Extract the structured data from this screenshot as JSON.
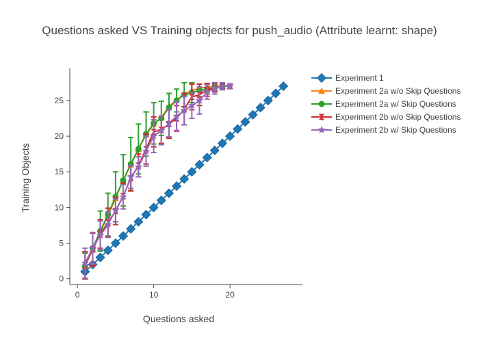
{
  "chart_data": {
    "type": "line",
    "title": "Questions asked VS Training objects for push_audio (Attribute learnt: shape)",
    "xlabel": "Questions asked",
    "ylabel": "Training Objects",
    "xlim": [
      -1,
      29.5
    ],
    "ylim": [
      -0.8,
      29.5
    ],
    "xticks": [
      0,
      10,
      20
    ],
    "yticks": [
      0,
      5,
      10,
      15,
      20,
      25
    ],
    "grid": false,
    "legend_position": "right",
    "series": [
      {
        "name": "Experiment 1",
        "color": "#1f77b4",
        "marker": "diamond",
        "x": [
          1,
          2,
          3,
          4,
          5,
          6,
          7,
          8,
          9,
          10,
          11,
          12,
          13,
          14,
          15,
          16,
          17,
          18,
          19,
          20,
          21,
          22,
          23,
          24,
          25,
          26,
          27
        ],
        "y": [
          1,
          2,
          3,
          4,
          5,
          6,
          7,
          8,
          9,
          10,
          11,
          12,
          13,
          14,
          15,
          16,
          17,
          18,
          19,
          20,
          21,
          22,
          23,
          24,
          25,
          26,
          27
        ]
      },
      {
        "name": "Experiment 2a w/o Skip Questions",
        "color": "#ff7f0e",
        "marker": "triangle-up",
        "x": [
          1,
          2,
          3,
          4,
          5,
          6,
          7,
          8,
          9,
          10,
          11,
          12,
          13,
          14,
          15,
          16,
          17,
          18,
          19,
          20
        ],
        "y": [
          1.8,
          4.2,
          6.6,
          8.8,
          11.3,
          13.8,
          16.0,
          18.2,
          20.2,
          21.7,
          22.6,
          24.2,
          25.1,
          25.9,
          26.4,
          26.7,
          26.9,
          27.0,
          27.0,
          27.0
        ]
      },
      {
        "name": "Experiment 2a w/ Skip Questions",
        "color": "#2ca02c",
        "marker": "circle",
        "x": [
          1,
          2,
          3,
          4,
          5,
          6,
          7,
          8,
          9,
          10,
          11,
          12,
          13,
          14,
          15,
          16,
          17,
          18,
          19
        ],
        "y": [
          1.8,
          4.3,
          6.7,
          9.0,
          11.5,
          13.8,
          16.1,
          18.2,
          20.3,
          21.8,
          22.5,
          24.0,
          25.0,
          25.8,
          26.1,
          26.4,
          26.6,
          26.8,
          27.0
        ],
        "err": [
          1.8,
          2.2,
          2.8,
          3.0,
          3.5,
          3.6,
          3.7,
          3.5,
          3.1,
          2.9,
          2.4,
          2.0,
          1.6,
          1.7,
          1.4,
          0.9,
          0.7,
          0.5,
          0.3
        ]
      },
      {
        "name": "Experiment 2b w/o Skip Questions",
        "color": "#d62728",
        "marker": "hourglass",
        "x": [
          1,
          2,
          3,
          4,
          5,
          6,
          7,
          8,
          9,
          10,
          11,
          12,
          13,
          14,
          15,
          16,
          17,
          18,
          19,
          20
        ],
        "y": [
          1.9,
          4.1,
          6.3,
          7.9,
          9.5,
          11.6,
          14.1,
          15.9,
          18.2,
          20.6,
          20.9,
          21.7,
          22.5,
          23.8,
          25.5,
          25.8,
          26.5,
          26.8,
          27.0,
          27.0
        ],
        "err": [
          1.9,
          2.3,
          2.0,
          2.0,
          1.9,
          1.8,
          1.8,
          1.6,
          2.1,
          2.1,
          1.9,
          2.0,
          1.8,
          2.2,
          1.8,
          1.5,
          0.9,
          0.6,
          0.4,
          0.3
        ]
      },
      {
        "name": "Experiment 2b w/ Skip Questions",
        "color": "#9467bd",
        "marker": "star",
        "x": [
          1,
          2,
          3,
          4,
          5,
          6,
          7,
          8,
          9,
          10,
          11,
          12,
          13,
          14,
          15,
          16,
          17,
          18,
          19,
          20
        ],
        "y": [
          2.2,
          4.3,
          6.1,
          7.6,
          9.6,
          11.5,
          14.3,
          15.7,
          17.9,
          20.0,
          20.8,
          21.8,
          22.8,
          23.6,
          24.3,
          25.0,
          26.2,
          26.7,
          27.0,
          27.0
        ],
        "err": [
          2.1,
          2.2,
          2.0,
          1.8,
          1.6,
          1.7,
          1.6,
          1.4,
          2.1,
          2.3,
          2.0,
          1.9,
          2.0,
          2.0,
          1.8,
          1.9,
          1.0,
          0.8,
          0.5,
          0.3
        ]
      }
    ]
  }
}
